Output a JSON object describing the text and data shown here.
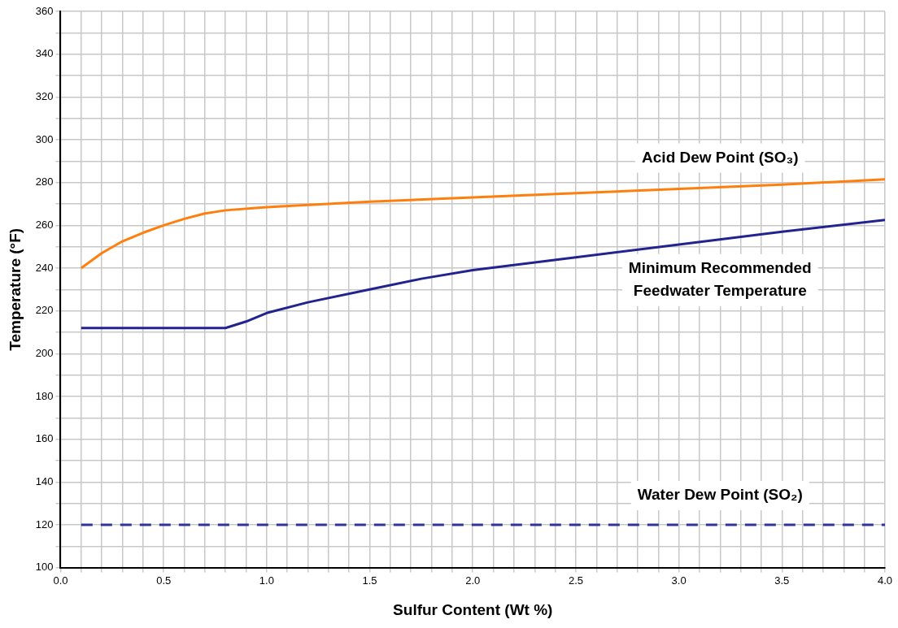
{
  "chart_data": {
    "type": "line",
    "xlabel": "Sulfur Content (Wt %)",
    "ylabel": "Temperature (°F)",
    "xlim": [
      0,
      4
    ],
    "ylim": [
      100,
      360
    ],
    "xticks": [
      {
        "value": 0,
        "label": "0.0"
      },
      {
        "value": 0.1,
        "label": null
      },
      {
        "value": 0.2,
        "label": null
      },
      {
        "value": 0.3,
        "label": null
      },
      {
        "value": 0.4,
        "label": null
      },
      {
        "value": 0.5,
        "label": "0.5"
      },
      {
        "value": 0.6,
        "label": null
      },
      {
        "value": 0.7,
        "label": null
      },
      {
        "value": 0.8,
        "label": null
      },
      {
        "value": 0.9,
        "label": null
      },
      {
        "value": 1,
        "label": "1.0"
      },
      {
        "value": 1.1,
        "label": null
      },
      {
        "value": 1.2,
        "label": null
      },
      {
        "value": 1.3,
        "label": null
      },
      {
        "value": 1.4,
        "label": null
      },
      {
        "value": 1.5,
        "label": "1.5"
      },
      {
        "value": 1.6,
        "label": null
      },
      {
        "value": 1.7,
        "label": null
      },
      {
        "value": 1.8,
        "label": null
      },
      {
        "value": 1.9,
        "label": null
      },
      {
        "value": 2,
        "label": "2.0"
      },
      {
        "value": 2.1,
        "label": null
      },
      {
        "value": 2.2,
        "label": null
      },
      {
        "value": 2.3,
        "label": null
      },
      {
        "value": 2.4,
        "label": null
      },
      {
        "value": 2.5,
        "label": "2.5"
      },
      {
        "value": 2.6,
        "label": null
      },
      {
        "value": 2.7,
        "label": null
      },
      {
        "value": 2.8,
        "label": null
      },
      {
        "value": 2.9,
        "label": null
      },
      {
        "value": 3,
        "label": "3.0"
      },
      {
        "value": 3.1,
        "label": null
      },
      {
        "value": 3.2,
        "label": null
      },
      {
        "value": 3.3,
        "label": null
      },
      {
        "value": 3.4,
        "label": null
      },
      {
        "value": 3.5,
        "label": "3.5"
      },
      {
        "value": 3.6,
        "label": null
      },
      {
        "value": 3.7,
        "label": null
      },
      {
        "value": 3.8,
        "label": null
      },
      {
        "value": 3.9,
        "label": null
      },
      {
        "value": 4,
        "label": "4.0"
      }
    ],
    "yticks": [
      100,
      {
        "value": 110,
        "label": null
      },
      120,
      {
        "value": 130,
        "label": null
      },
      140,
      {
        "value": 150,
        "label": null
      },
      160,
      {
        "value": 170,
        "label": null
      },
      180,
      {
        "value": 190,
        "label": null
      },
      200,
      {
        "value": 210,
        "label": null
      },
      220,
      {
        "value": 230,
        "label": null
      },
      240,
      {
        "value": 250,
        "label": null
      },
      260,
      {
        "value": 270,
        "label": null
      },
      280,
      {
        "value": 290,
        "label": null
      },
      300,
      {
        "value": 310,
        "label": null
      },
      320,
      {
        "value": 330,
        "label": null
      },
      340,
      {
        "value": 350,
        "label": null
      },
      360
    ],
    "grid": true,
    "marker": "none",
    "series": [
      {
        "name": "Acid Dew Point (SO₃)",
        "color": "#ff7f0e",
        "line_style": "solid",
        "x": [
          0.1,
          0.2,
          0.3,
          0.4,
          0.5,
          0.6,
          0.7,
          0.8,
          1.0,
          1.5,
          2.0,
          2.5,
          3.0,
          3.5,
          4.0
        ],
        "values": [
          240,
          247,
          252.5,
          256.5,
          260,
          263,
          265.5,
          267,
          268.5,
          271,
          273,
          275,
          277,
          279,
          281.5
        ]
      },
      {
        "name": "Minimum Recommended\nFeedwater Temperature",
        "color": "#23238f",
        "line_style": "solid",
        "x": [
          0.1,
          0.8,
          0.9,
          1.0,
          1.2,
          1.5,
          1.75,
          2.0,
          2.5,
          3.0,
          3.5,
          4.0
        ],
        "values": [
          212,
          212,
          215,
          219,
          224,
          230,
          235,
          239,
          245,
          251,
          257,
          262.5
        ]
      },
      {
        "name": "Water Dew Point (SO₂)",
        "color": "#33339a",
        "line_style": "dashed",
        "x": [
          0.1,
          4.0
        ],
        "values": [
          120,
          120
        ]
      }
    ]
  }
}
